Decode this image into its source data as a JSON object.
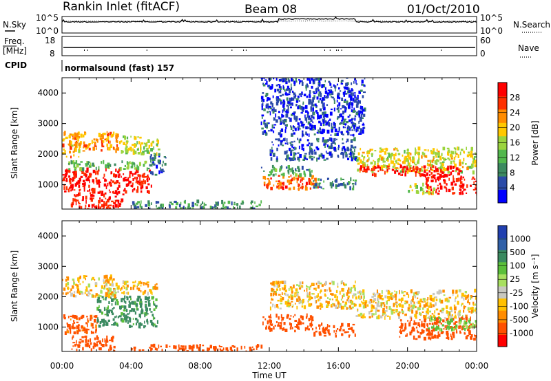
{
  "header": {
    "station": "Rankin Inlet (fitACF)",
    "beam": "Beam 08",
    "date": "01/Oct/2010"
  },
  "top_panels": {
    "nsky_label": "N.Sky",
    "nsky_ticks": [
      "10^5",
      "10^0"
    ],
    "nsearch_label": "N.Search",
    "nsearch_ticks": [
      "10^5",
      "10^0"
    ],
    "freq_label": "Freq.",
    "freq_unit": "[MHz]",
    "freq_ticks": [
      "18",
      "8"
    ],
    "nave_label": "Nave",
    "nave_ticks": [
      "60",
      "0"
    ],
    "cpid_label": "CPID",
    "cpid_text": "normalsound (fast) 157"
  },
  "chart_data": [
    {
      "type": "heatmap",
      "name": "power",
      "ylabel": "Slant Range [km]",
      "yticks": [
        "4000",
        "3000",
        "2000",
        "1000"
      ],
      "ylim": [
        200,
        4500
      ],
      "xlim": [
        "00:00",
        "24:00"
      ],
      "colorbar_label": "Power [dB]",
      "colorbar_ticks": [
        "28",
        "24",
        "20",
        "16",
        "12",
        "8",
        "4"
      ],
      "colorbar_range": [
        0,
        30
      ],
      "colors": [
        "#0000ff",
        "#2b4ba8",
        "#3c8a60",
        "#53b84d",
        "#9bd43e",
        "#ffc800",
        "#ff8c00",
        "#ff3000",
        "#ff0000"
      ],
      "regions": [
        {
          "t0": 0.0,
          "t1": 5.2,
          "r0": 750,
          "r1": 1500,
          "value": 28
        },
        {
          "t0": 0.3,
          "t1": 5.0,
          "r0": 1500,
          "r1": 1750,
          "value": 12
        },
        {
          "t0": 0.5,
          "t1": 3.2,
          "r0": 2100,
          "r1": 2700,
          "value": 21
        },
        {
          "t0": 3.3,
          "t1": 5.6,
          "r0": 2000,
          "r1": 2600,
          "value": 16
        },
        {
          "t0": 5.0,
          "t1": 6.0,
          "r0": 1300,
          "r1": 2000,
          "value": 6
        },
        {
          "t0": 0.5,
          "t1": 3.5,
          "r0": 200,
          "r1": 750,
          "value": 27
        },
        {
          "t0": 4.0,
          "t1": 11.5,
          "r0": 200,
          "r1": 450,
          "value": 9
        },
        {
          "t0": 11.6,
          "t1": 14.8,
          "r0": 850,
          "r1": 1300,
          "value": 24
        },
        {
          "t0": 11.5,
          "t1": 14.5,
          "r0": 1300,
          "r1": 1600,
          "value": 10
        },
        {
          "t0": 12.0,
          "t1": 17.0,
          "r0": 1800,
          "r1": 2500,
          "value": 5
        },
        {
          "t0": 14.5,
          "t1": 17.0,
          "r0": 850,
          "r1": 1200,
          "value": 8
        },
        {
          "t0": 17.0,
          "t1": 24.0,
          "r0": 1400,
          "r1": 2200,
          "value": 17
        },
        {
          "t0": 17.2,
          "t1": 23.0,
          "r0": 1300,
          "r1": 1600,
          "value": 28
        },
        {
          "t0": 21.0,
          "t1": 24.0,
          "r0": 700,
          "r1": 1300,
          "value": 28
        },
        {
          "t0": 20.0,
          "t1": 21.5,
          "r0": 700,
          "r1": 1000,
          "value": 15
        },
        {
          "t0": 11.5,
          "t1": 17.5,
          "r0": 2600,
          "r1": 4500,
          "value": 4
        },
        {
          "t0": 0.0,
          "t1": 1.0,
          "r0": 1900,
          "r1": 2700,
          "value": 20
        }
      ]
    },
    {
      "type": "heatmap",
      "name": "velocity",
      "ylabel": "Slant Range [km]",
      "yticks": [
        "4000",
        "3000",
        "2000",
        "1000"
      ],
      "ylim": [
        200,
        4500
      ],
      "xlim": [
        "00:00",
        "24:00"
      ],
      "colorbar_label": "Velocity [m s⁻¹]",
      "colorbar_ticks": [
        "1000",
        "500",
        "100",
        "25",
        "-25",
        "-100",
        "-500",
        "-1000"
      ],
      "colors": [
        "#2140b0",
        "#3060a8",
        "#3a8a60",
        "#5bbf3a",
        "#a8e060",
        "#c8c8c0",
        "#ffc000",
        "#ff8c00",
        "#ff5000",
        "#ff0000"
      ],
      "regions": [
        {
          "t0": 0.0,
          "t1": 2.0,
          "r0": 800,
          "r1": 1400,
          "value": -150
        },
        {
          "t0": 2.0,
          "t1": 5.5,
          "r0": 1000,
          "r1": 2000,
          "value": 300
        },
        {
          "t0": 0.0,
          "t1": 3.0,
          "r0": 2000,
          "r1": 2700,
          "value": 0
        },
        {
          "t0": 3.0,
          "t1": 5.5,
          "r0": 2100,
          "r1": 2500,
          "value": 0
        },
        {
          "t0": 0.5,
          "t1": 3.0,
          "r0": 200,
          "r1": 700,
          "value": -300
        },
        {
          "t0": 4.0,
          "t1": 11.5,
          "r0": 200,
          "r1": 400,
          "value": -200
        },
        {
          "t0": 11.6,
          "t1": 14.5,
          "r0": 850,
          "r1": 1400,
          "value": -300
        },
        {
          "t0": 12.0,
          "t1": 17.0,
          "r0": 1600,
          "r1": 2500,
          "value": 0
        },
        {
          "t0": 14.5,
          "t1": 17.0,
          "r0": 700,
          "r1": 1100,
          "value": -400
        },
        {
          "t0": 17.0,
          "t1": 24.0,
          "r0": 1300,
          "r1": 2200,
          "value": 0
        },
        {
          "t0": 19.5,
          "t1": 24.0,
          "r0": 600,
          "r1": 1300,
          "value": -300
        },
        {
          "t0": 21.0,
          "t1": 24.0,
          "r0": 900,
          "r1": 1300,
          "value": 120
        }
      ]
    }
  ],
  "x_axis": {
    "ticks": [
      "00:00",
      "04:00",
      "08:00",
      "12:00",
      "16:00",
      "20:00",
      "00:00"
    ],
    "label": "Time UT"
  }
}
